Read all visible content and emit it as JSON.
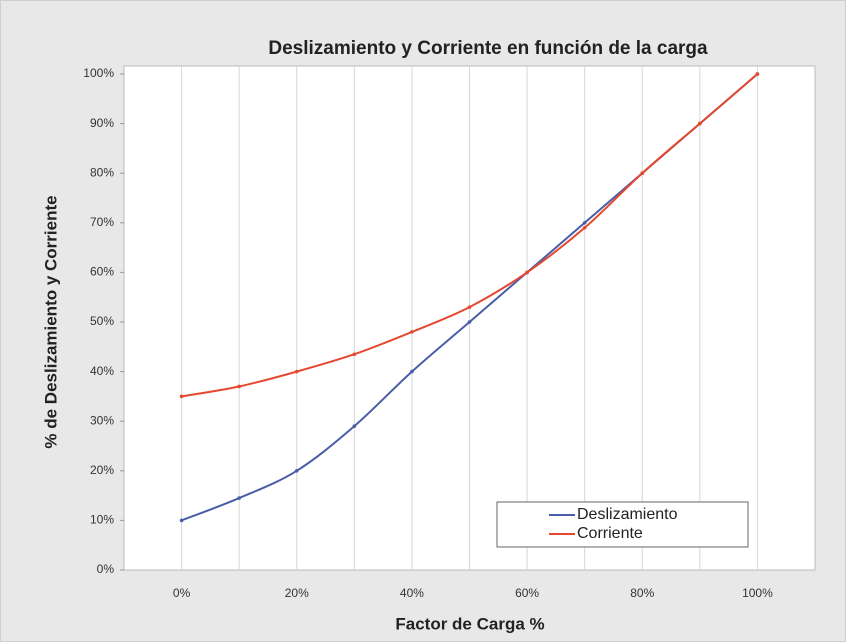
{
  "chart_data": {
    "type": "line",
    "title": "Deslizamiento y Corriente en función de la carga",
    "xlabel": "Factor de Carga %",
    "ylabel": "% de Deslizamiento y Corriente",
    "x": [
      0,
      10,
      20,
      30,
      40,
      50,
      60,
      70,
      80,
      90,
      100
    ],
    "series": [
      {
        "name": "Deslizamiento",
        "color": "#4a5ea8",
        "values": [
          10,
          14.5,
          20,
          29,
          40,
          50,
          60,
          70,
          80,
          90,
          100
        ]
      },
      {
        "name": "Corriente",
        "color": "#e5482f",
        "values": [
          35,
          37,
          40,
          43.5,
          48,
          53,
          60,
          69,
          80,
          90,
          100
        ]
      }
    ],
    "xlim": [
      -10,
      110
    ],
    "xticks": [
      {
        "value": 0,
        "label": "0%"
      },
      {
        "value": 20,
        "label": "20%"
      },
      {
        "value": 40,
        "label": "40%"
      },
      {
        "value": 60,
        "label": "60%"
      },
      {
        "value": 80,
        "label": "80%"
      },
      {
        "value": 100,
        "label": "100%"
      }
    ],
    "xminor_ticks": [
      10,
      30,
      50,
      70,
      90
    ],
    "ylim": [
      0,
      100
    ],
    "yticks": [
      {
        "value": 0,
        "label": "0%"
      },
      {
        "value": 10,
        "label": "10%"
      },
      {
        "value": 20,
        "label": "20%"
      },
      {
        "value": 30,
        "label": "30%"
      },
      {
        "value": 40,
        "label": "40%"
      },
      {
        "value": 50,
        "label": "50%"
      },
      {
        "value": 60,
        "label": "60%"
      },
      {
        "value": 70,
        "label": "70%"
      },
      {
        "value": 80,
        "label": "80%"
      },
      {
        "value": 90,
        "label": "90%"
      },
      {
        "value": 100,
        "label": "100%"
      }
    ],
    "grid": "x",
    "legend": "lower right"
  }
}
